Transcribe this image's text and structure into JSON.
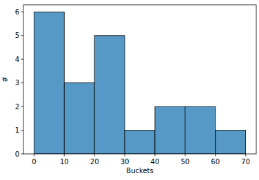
{
  "chart_data": {
    "type": "histogram",
    "xlabel": "Buckets",
    "ylabel": "#",
    "bins": [
      0,
      10,
      20,
      30,
      40,
      50,
      60,
      70
    ],
    "values": [
      6,
      3,
      5,
      1,
      2,
      2,
      1
    ],
    "color": "#5799c6",
    "xlim": [
      -3.5,
      73.5
    ],
    "ylim": [
      0,
      6.3
    ],
    "xticks": [
      0,
      10,
      20,
      30,
      40,
      50,
      60,
      70
    ],
    "yticks": [
      0,
      1,
      2,
      3,
      4,
      5,
      6
    ],
    "grid": false
  }
}
